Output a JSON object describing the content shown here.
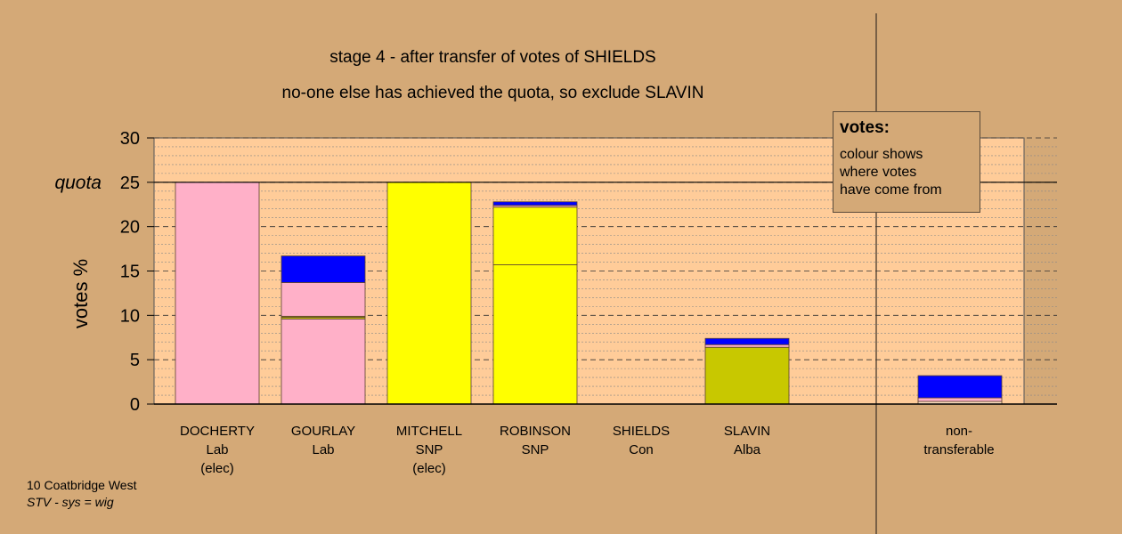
{
  "title": "stage 4 - after transfer of votes of SHIELDS",
  "subtitle": "no-one else has achieved the quota, so exclude SLAVIN",
  "legend": {
    "heading": "votes:",
    "lines": [
      "colour shows",
      "where votes",
      "have come from"
    ]
  },
  "footer": {
    "line1": "10 Coatbridge West",
    "line2": "STV - sys = wig"
  },
  "colors": {
    "background": "#d4a977",
    "plot": "#ffcc99",
    "lab": "#ffb0c8",
    "snp": "#ffff00",
    "con": "#0000ff",
    "alba": "#c8c800",
    "neutral": "#ffe0c0"
  },
  "chart_data": {
    "type": "bar",
    "stacked": true,
    "ylabel": "votes %",
    "ylim": [
      0,
      30
    ],
    "yticks": [
      0,
      5,
      10,
      15,
      20,
      25,
      30
    ],
    "quota": 25,
    "quota_label": "quota",
    "grid": true,
    "categories": [
      {
        "name": "DOCHERTY",
        "party": "Lab",
        "note": "(elec)"
      },
      {
        "name": "GOURLAY",
        "party": "Lab",
        "note": ""
      },
      {
        "name": "MITCHELL",
        "party": "SNP",
        "note": "(elec)"
      },
      {
        "name": "ROBINSON",
        "party": "SNP",
        "note": ""
      },
      {
        "name": "SHIELDS",
        "party": "Con",
        "note": ""
      },
      {
        "name": "SLAVIN",
        "party": "Alba",
        "note": ""
      },
      {
        "name": "non-",
        "party": "transferable",
        "note": ""
      }
    ],
    "segments": [
      [
        {
          "value": 25.0,
          "color": "#ffb0c8"
        }
      ],
      [
        {
          "value": 9.6,
          "color": "#ffb0c8"
        },
        {
          "value": 0.2,
          "color": "#c8c800"
        },
        {
          "value": 0.1,
          "color": "#ffff00"
        },
        {
          "value": 3.8,
          "color": "#ffb0c8"
        },
        {
          "value": 3.0,
          "color": "#0000ff"
        }
      ],
      [
        {
          "value": 25.0,
          "color": "#ffff00"
        }
      ],
      [
        {
          "value": 15.7,
          "color": "#ffff00"
        },
        {
          "value": 6.5,
          "color": "#ffff00"
        },
        {
          "value": 0.2,
          "color": "#ffb0c8"
        },
        {
          "value": 0.4,
          "color": "#0000ff"
        }
      ],
      [],
      [
        {
          "value": 6.4,
          "color": "#c8c800"
        },
        {
          "value": 0.3,
          "color": "#ffb0c8"
        },
        {
          "value": 0.7,
          "color": "#0000ff"
        }
      ],
      [
        {
          "value": 0.3,
          "color": "#ffe0c0"
        },
        {
          "value": 0.4,
          "color": "#ffb0c8"
        },
        {
          "value": 2.5,
          "color": "#0000ff"
        }
      ]
    ]
  }
}
